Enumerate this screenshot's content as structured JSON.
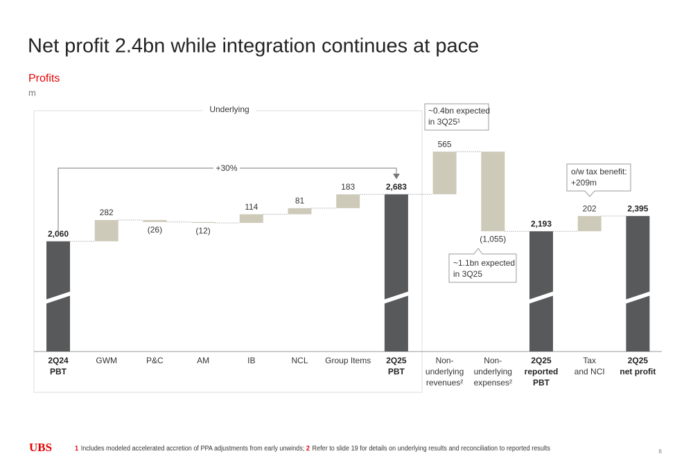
{
  "title": "Net profit 2.4bn while integration continues at pace",
  "page_number": "6",
  "logo": "UBS",
  "footnotes": [
    {
      "number": "1",
      "text": "Includes modeled accelerated accretion of PPA adjustments from early unwinds;"
    },
    {
      "number": "2",
      "text": "Refer to slide 19 for details on underlying results and reconciliation to reported results"
    }
  ],
  "chart_data": {
    "type": "waterfall",
    "title": "Profits",
    "y_label": "m",
    "categories": [
      [
        "2Q24",
        "PBT"
      ],
      [
        "GWM"
      ],
      [
        "P&C"
      ],
      [
        "AM"
      ],
      [
        "IB"
      ],
      [
        "NCL"
      ],
      [
        "Group Items"
      ],
      [
        "2Q25",
        "PBT"
      ],
      [
        "Non-",
        "underlying",
        "revenues²"
      ],
      [
        "Non-",
        "underlying",
        "expenses²"
      ],
      [
        "2Q25",
        "reported",
        "PBT"
      ],
      [
        "Tax",
        "and NCI"
      ],
      [
        "2Q25",
        "net profit"
      ]
    ],
    "values": [
      2060,
      282,
      -26,
      -12,
      114,
      81,
      183,
      2683,
      565,
      -1055,
      2193,
      202,
      2395
    ],
    "value_labels": [
      "2,060",
      "282",
      "(26)",
      "(12)",
      "114",
      "81",
      "183",
      "2,683",
      "565",
      "(1,055)",
      "2,193",
      "202",
      "2,395"
    ],
    "kinds": [
      "total",
      "delta",
      "delta",
      "delta",
      "delta",
      "delta",
      "delta",
      "total",
      "delta",
      "delta",
      "total",
      "delta",
      "total"
    ],
    "colors": {
      "total": "#58595b",
      "delta": "#cdcab9"
    },
    "ylim": [
      600,
      3790
    ],
    "annotations": {
      "underlying": "Underlying",
      "growth": "+30%",
      "revenues_note": [
        "~0.4bn expected",
        "in 3Q25¹"
      ],
      "expenses_note": [
        "~1.1bn expected",
        "in 3Q25"
      ],
      "tax_note": [
        "o/w tax benefit:",
        "+209m"
      ]
    }
  }
}
